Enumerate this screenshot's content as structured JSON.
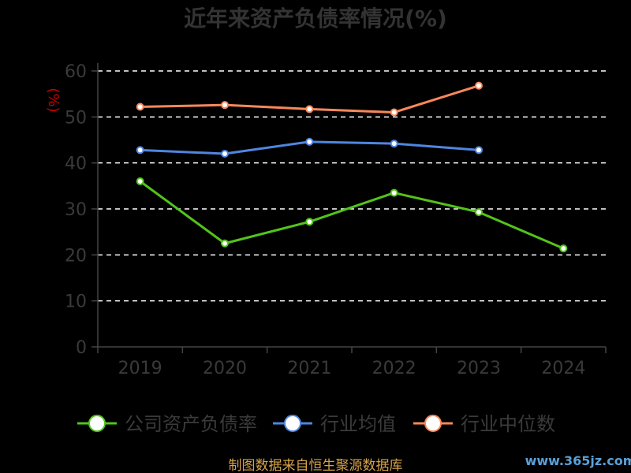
{
  "chart_data": {
    "type": "line",
    "title": "近年来资产负债率情况(%)",
    "unit_label": "(%)",
    "categories": [
      "2019",
      "2020",
      "2021",
      "2022",
      "2023",
      "2024"
    ],
    "ylim": [
      0,
      60
    ],
    "yticks": [
      "0",
      "10",
      "20",
      "30",
      "40",
      "50",
      "60"
    ],
    "grid": true,
    "legend_position": "bottom",
    "series": [
      {
        "name": "公司资产负债率",
        "color": "#52c41a",
        "values": [
          36.0,
          22.5,
          27.2,
          33.5,
          29.3,
          21.4
        ]
      },
      {
        "name": "行业均值",
        "color": "#4f86e0",
        "values": [
          42.8,
          42.0,
          44.6,
          44.2,
          42.8,
          null
        ]
      },
      {
        "name": "行业中位数",
        "color": "#f7885a",
        "values": [
          52.2,
          52.6,
          51.7,
          51.0,
          56.8,
          null
        ]
      }
    ]
  },
  "footer": {
    "source": "制图数据来自恒生聚源数据库",
    "watermark": "www.365jz.com"
  }
}
